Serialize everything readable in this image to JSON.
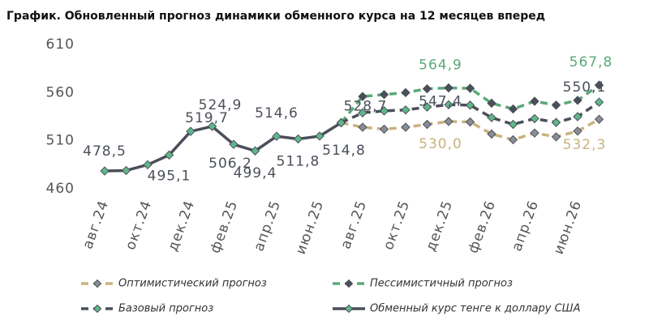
{
  "chart_data": {
    "type": "line",
    "title": "График. Обновленный прогноз динамики обменного курса на 12 месяцев вперед",
    "categories": [
      "авг.24",
      null,
      "окт.24",
      null,
      "дек.24",
      null,
      "фев.25",
      null,
      "апр.25",
      null,
      "июн.25",
      null,
      "авг.25",
      null,
      "окт.25",
      null,
      "дек.25",
      null,
      "фев.26",
      null,
      "апр.26",
      null,
      "июн.26",
      null
    ],
    "ylim": [
      460,
      610
    ],
    "yticks": [
      460,
      510,
      560,
      610
    ],
    "grid": false,
    "legend": "bottom",
    "series": [
      {
        "name": "Оптимистический прогноз",
        "color": "#c9b37e",
        "marker_color": "#8a8d93",
        "line_style": "dashed",
        "values": [
          null,
          null,
          null,
          null,
          null,
          null,
          null,
          null,
          null,
          null,
          null,
          528.7,
          524,
          522,
          524,
          527,
          530.0,
          529.5,
          517,
          511,
          518,
          514,
          520,
          532.3
        ],
        "value_labels": [
          null,
          null,
          null,
          null,
          null,
          null,
          null,
          null,
          null,
          null,
          null,
          null,
          null,
          null,
          null,
          null,
          "530,0",
          null,
          null,
          null,
          null,
          null,
          null,
          "532,3"
        ]
      },
      {
        "name": "Пессимистичный прогноз",
        "color": "#5aa979",
        "marker_color": "#4a4f5a",
        "line_style": "dashed",
        "values": [
          null,
          null,
          null,
          null,
          null,
          null,
          null,
          null,
          null,
          null,
          null,
          528.7,
          556,
          558,
          560,
          564,
          564.9,
          564.5,
          549,
          543,
          551,
          547,
          552,
          567.8
        ],
        "value_labels": [
          null,
          null,
          null,
          null,
          null,
          null,
          null,
          null,
          null,
          null,
          null,
          null,
          null,
          null,
          null,
          null,
          "564,9",
          null,
          null,
          null,
          null,
          null,
          null,
          "567,8"
        ]
      },
      {
        "name": "Базовый прогноз",
        "color": "#4a4f5a",
        "marker_color": "#5fb889",
        "line_style": "dashed",
        "values": [
          null,
          null,
          null,
          null,
          null,
          null,
          null,
          null,
          null,
          null,
          null,
          528.7,
          539,
          541,
          542,
          545,
          547.4,
          547,
          534,
          527,
          533,
          529,
          535,
          550.1
        ],
        "value_labels": [
          null,
          null,
          null,
          null,
          null,
          null,
          null,
          null,
          null,
          null,
          null,
          null,
          null,
          null,
          null,
          null,
          "547,4",
          null,
          null,
          null,
          null,
          null,
          null,
          "550,1"
        ]
      },
      {
        "name": "Обменный курс тенге к доллару США",
        "color": "#4a4f5a",
        "marker_color": "#5fb889",
        "line_style": "solid",
        "values": [
          478.5,
          479,
          485,
          495.1,
          519.7,
          524.9,
          506.2,
          499.4,
          514.6,
          511.8,
          514.8,
          528.7,
          null,
          null,
          null,
          null,
          null,
          null,
          null,
          null,
          null,
          null,
          null,
          null
        ],
        "value_labels": [
          "478,5",
          null,
          null,
          "495,1",
          "519,7",
          "524,9",
          "506,2",
          "499,4",
          "514,6",
          "511,8",
          "514,8",
          "528,7",
          null,
          null,
          null,
          null,
          null,
          null,
          null,
          null,
          null,
          null,
          null,
          null
        ]
      }
    ]
  }
}
